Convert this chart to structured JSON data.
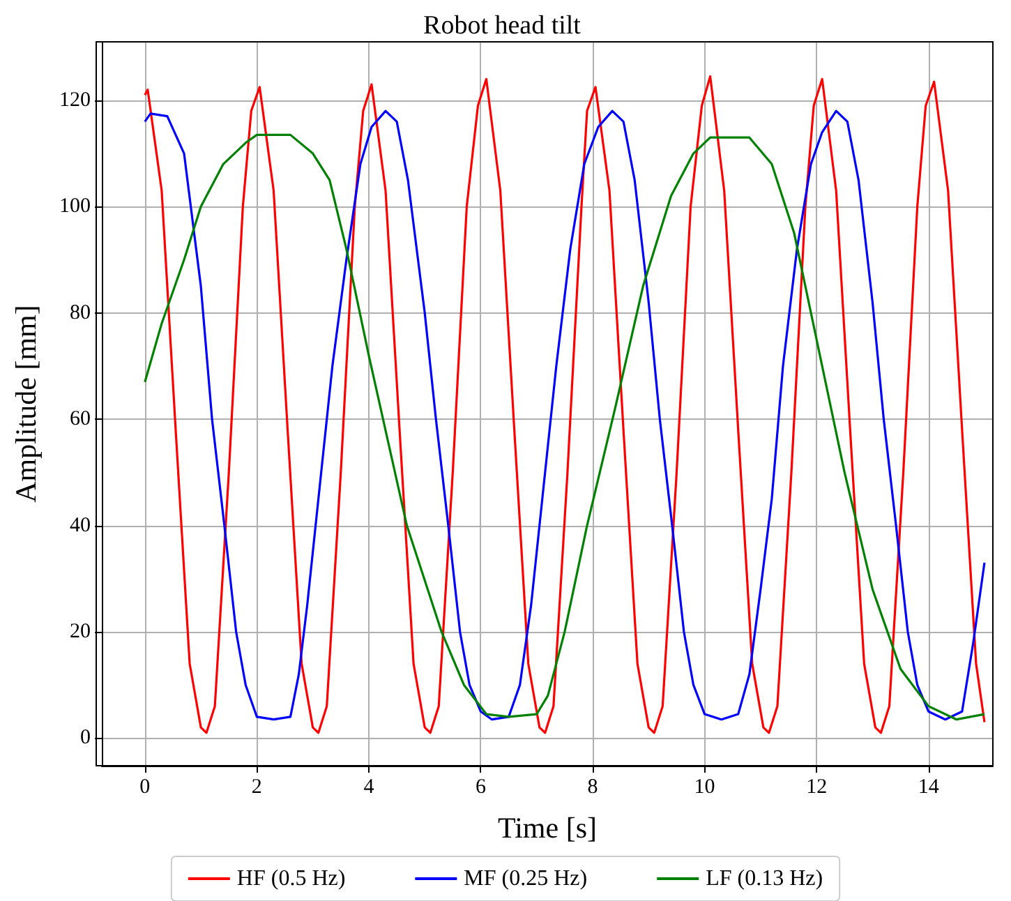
{
  "chart_data": {
    "type": "line",
    "title": "Robot head tilt",
    "xlabel": "Time [s]",
    "ylabel": "Amplitude [mm]",
    "xlim": [
      -0.77,
      15.15
    ],
    "ylim": [
      -5.2,
      131
    ],
    "xticks": [
      0,
      2,
      4,
      6,
      8,
      10,
      12,
      14
    ],
    "yticks": [
      0,
      20,
      40,
      60,
      80,
      100,
      120
    ],
    "grid": true,
    "legend": "bottom",
    "marker": "none",
    "line_style": "solid",
    "series": [
      {
        "name": "HF (0.5 Hz)",
        "color": "#ff0000",
        "x": [
          0,
          0.05,
          0.3,
          0.55,
          0.8,
          1.0,
          1.1,
          1.25,
          1.5,
          1.75,
          1.9,
          2.05,
          2.3,
          2.55,
          2.8,
          3.0,
          3.1,
          3.25,
          3.5,
          3.75,
          3.9,
          4.05,
          4.3,
          4.55,
          4.8,
          5.0,
          5.1,
          5.25,
          5.5,
          5.75,
          5.95,
          6.1,
          6.35,
          6.6,
          6.85,
          7.05,
          7.15,
          7.3,
          7.55,
          7.8,
          7.9,
          8.05,
          8.3,
          8.55,
          8.8,
          9.0,
          9.1,
          9.25,
          9.5,
          9.75,
          9.95,
          10.1,
          10.35,
          10.6,
          10.85,
          11.05,
          11.15,
          11.3,
          11.55,
          11.8,
          11.95,
          12.1,
          12.35,
          12.6,
          12.85,
          13.05,
          13.15,
          13.3,
          13.55,
          13.8,
          13.95,
          14.1,
          14.35,
          14.6,
          14.85,
          15.0
        ],
        "values": [
          121,
          122,
          103,
          58,
          14,
          2,
          1,
          6,
          50,
          100,
          118,
          122.5,
          103,
          58,
          14,
          2,
          1,
          6,
          50,
          100,
          118,
          123,
          103,
          58,
          14,
          2,
          1,
          6,
          50,
          100,
          119,
          124,
          103,
          58,
          14,
          2,
          1,
          6,
          50,
          100,
          118,
          122.5,
          103,
          58,
          14,
          2,
          1,
          6,
          50,
          100,
          119,
          124.5,
          103,
          58,
          14,
          2,
          1,
          6,
          50,
          100,
          119,
          124,
          103,
          58,
          14,
          2,
          1,
          6,
          50,
          100,
          119,
          123.5,
          103,
          58,
          14,
          3
        ]
      },
      {
        "name": "MF (0.25 Hz)",
        "color": "#0000ff",
        "x": [
          0,
          0.1,
          0.4,
          0.7,
          1.0,
          1.2,
          1.42,
          1.63,
          1.8,
          2.0,
          2.3,
          2.6,
          2.75,
          2.9,
          3.1,
          3.35,
          3.6,
          3.85,
          4.05,
          4.3,
          4.5,
          4.7,
          5.0,
          5.2,
          5.42,
          5.63,
          5.8,
          6.0,
          6.2,
          6.5,
          6.7,
          6.9,
          7.1,
          7.35,
          7.6,
          7.85,
          8.1,
          8.35,
          8.55,
          8.75,
          9.0,
          9.2,
          9.42,
          9.63,
          9.8,
          10.0,
          10.3,
          10.6,
          10.8,
          11.0,
          11.2,
          11.4,
          11.65,
          11.9,
          12.1,
          12.35,
          12.55,
          12.75,
          13.0,
          13.2,
          13.42,
          13.63,
          13.8,
          14.0,
          14.3,
          14.6,
          14.8,
          15.0
        ],
        "values": [
          116,
          117.5,
          117,
          110,
          85,
          60,
          40,
          20,
          10,
          4,
          3.5,
          4,
          12,
          25,
          45,
          70,
          90,
          108,
          115,
          118,
          116,
          105,
          80,
          60,
          40,
          20,
          10,
          5,
          3.5,
          4,
          10,
          25,
          45,
          70,
          92,
          108,
          115,
          118,
          116,
          105,
          82,
          60,
          40,
          20,
          10,
          4.5,
          3.5,
          4.5,
          12,
          28,
          45,
          70,
          92,
          108,
          114,
          118,
          116,
          105,
          82,
          60,
          40,
          20,
          10,
          5,
          3.5,
          5,
          18,
          33
        ]
      },
      {
        "name": "LF (0.13 Hz)",
        "color": "#008000",
        "x": [
          0,
          0.3,
          0.7,
          1.0,
          1.4,
          1.8,
          2.0,
          2.6,
          3.0,
          3.3,
          3.6,
          4.0,
          4.68,
          5.3,
          5.7,
          6.1,
          6.5,
          7.0,
          7.2,
          7.5,
          7.9,
          8.4,
          8.9,
          9.4,
          9.8,
          10.1,
          10.8,
          11.2,
          11.6,
          12.0,
          12.5,
          13.0,
          13.5,
          14.0,
          14.5,
          15.0
        ],
        "values": [
          67,
          78,
          90,
          100,
          108,
          112,
          113.5,
          113.5,
          110,
          105,
          92,
          72,
          40,
          20,
          10,
          4.5,
          4,
          4.5,
          8,
          20,
          40,
          62,
          85,
          102,
          110,
          113,
          113,
          108,
          95,
          75,
          50,
          28,
          13,
          6,
          3.5,
          4.5
        ]
      }
    ]
  }
}
